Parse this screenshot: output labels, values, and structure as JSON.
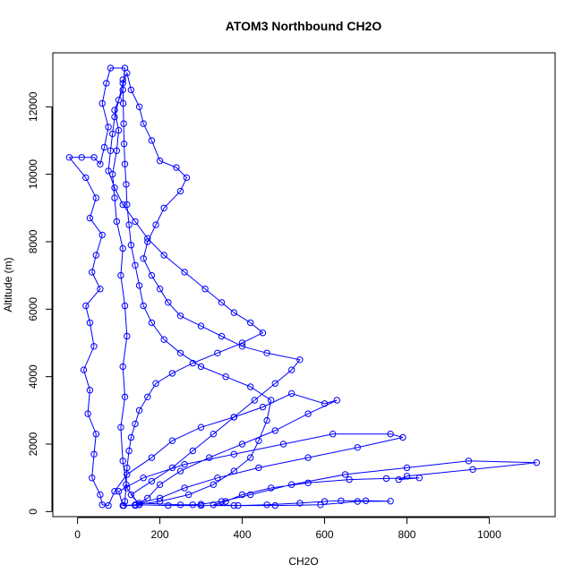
{
  "chart_data": {
    "type": "scatter",
    "title": "ATOM3 Northbound CH2O",
    "xlabel": "CH2O",
    "ylabel": "Altitude (m)",
    "xlim": [
      -60,
      1160
    ],
    "ylim": [
      -150,
      13600
    ],
    "x_ticks": [
      0,
      200,
      400,
      600,
      800,
      1000
    ],
    "y_ticks": [
      0,
      2000,
      4000,
      6000,
      8000,
      10000,
      12000
    ],
    "grid": false,
    "legend": "none",
    "series_color": "#0000ff",
    "marker": "open-circle",
    "connected": true,
    "series": [
      {
        "name": "",
        "points": [
          [
            150,
            200
          ],
          [
            120,
            700
          ],
          [
            110,
            1500
          ],
          [
            105,
            2500
          ],
          [
            115,
            3400
          ],
          [
            110,
            4300
          ],
          [
            120,
            5200
          ],
          [
            115,
            6100
          ],
          [
            105,
            7000
          ],
          [
            110,
            7800
          ],
          [
            95,
            8600
          ],
          [
            90,
            9300
          ],
          [
            85,
            10000
          ],
          [
            95,
            10700
          ],
          [
            100,
            11300
          ],
          [
            90,
            11900
          ],
          [
            110,
            12500
          ],
          [
            115,
            13150
          ],
          [
            80,
            13150
          ],
          [
            70,
            12700
          ],
          [
            60,
            12100
          ],
          [
            75,
            11400
          ],
          [
            65,
            10800
          ],
          [
            55,
            10300
          ],
          [
            40,
            10500
          ],
          [
            10,
            10500
          ],
          [
            -20,
            10500
          ],
          [
            20,
            9900
          ],
          [
            45,
            9300
          ],
          [
            30,
            8700
          ],
          [
            60,
            8200
          ],
          [
            45,
            7600
          ],
          [
            35,
            7100
          ],
          [
            55,
            6600
          ],
          [
            20,
            6100
          ],
          [
            30,
            5600
          ],
          [
            40,
            4900
          ],
          [
            15,
            4200
          ],
          [
            30,
            3600
          ],
          [
            25,
            2900
          ],
          [
            45,
            2300
          ],
          [
            40,
            1700
          ],
          [
            35,
            1000
          ],
          [
            55,
            500
          ],
          [
            60,
            200
          ],
          [
            75,
            180
          ],
          [
            90,
            600
          ],
          [
            120,
            1100
          ],
          [
            180,
            1600
          ],
          [
            230,
            2100
          ],
          [
            300,
            2500
          ],
          [
            380,
            2800
          ],
          [
            450,
            3100
          ],
          [
            520,
            3500
          ],
          [
            600,
            3200
          ],
          [
            630,
            3300
          ],
          [
            560,
            2900
          ],
          [
            480,
            2400
          ],
          [
            400,
            2000
          ],
          [
            320,
            1600
          ],
          [
            250,
            1200
          ],
          [
            200,
            800
          ],
          [
            170,
            400
          ],
          [
            140,
            180
          ],
          [
            110,
            180
          ],
          [
            100,
            600
          ],
          [
            160,
            1000
          ],
          [
            260,
            1400
          ],
          [
            380,
            1700
          ],
          [
            500,
            2000
          ],
          [
            620,
            2300
          ],
          [
            760,
            2300
          ],
          [
            790,
            2200
          ],
          [
            680,
            1900
          ],
          [
            560,
            1600
          ],
          [
            440,
            1300
          ],
          [
            340,
            1000
          ],
          [
            260,
            700
          ],
          [
            200,
            400
          ],
          [
            150,
            250
          ],
          [
            250,
            200
          ],
          [
            280,
            200
          ],
          [
            300,
            220
          ],
          [
            350,
            300
          ],
          [
            420,
            500
          ],
          [
            520,
            800
          ],
          [
            650,
            1100
          ],
          [
            800,
            1300
          ],
          [
            950,
            1500
          ],
          [
            1115,
            1450
          ],
          [
            960,
            1250
          ],
          [
            800,
            1050
          ],
          [
            780,
            950
          ],
          [
            830,
            1000
          ],
          [
            750,
            980
          ],
          [
            660,
            950
          ],
          [
            560,
            850
          ],
          [
            470,
            700
          ],
          [
            400,
            500
          ],
          [
            360,
            300
          ],
          [
            330,
            200
          ],
          [
            390,
            180
          ],
          [
            460,
            200
          ],
          [
            540,
            250
          ],
          [
            600,
            300
          ],
          [
            640,
            320
          ],
          [
            700,
            320
          ],
          [
            760,
            310
          ],
          [
            680,
            300
          ],
          [
            590,
            200
          ],
          [
            480,
            180
          ],
          [
            380,
            180
          ],
          [
            300,
            180
          ],
          [
            220,
            180
          ],
          [
            150,
            200
          ],
          [
            130,
            500
          ],
          [
            180,
            900
          ],
          [
            230,
            1300
          ],
          [
            280,
            1800
          ],
          [
            330,
            2300
          ],
          [
            380,
            2800
          ],
          [
            430,
            3300
          ],
          [
            480,
            3800
          ],
          [
            520,
            4200
          ],
          [
            540,
            4500
          ],
          [
            460,
            4700
          ],
          [
            400,
            4900
          ],
          [
            350,
            5200
          ],
          [
            300,
            5500
          ],
          [
            250,
            5800
          ],
          [
            220,
            6200
          ],
          [
            200,
            6600
          ],
          [
            180,
            7000
          ],
          [
            160,
            7500
          ],
          [
            170,
            8000
          ],
          [
            190,
            8500
          ],
          [
            210,
            9000
          ],
          [
            250,
            9500
          ],
          [
            265,
            9900
          ],
          [
            240,
            10200
          ],
          [
            200,
            10400
          ],
          [
            180,
            11000
          ],
          [
            160,
            11500
          ],
          [
            150,
            12000
          ],
          [
            130,
            12500
          ],
          [
            120,
            13000
          ],
          [
            110,
            12700
          ],
          [
            100,
            12200
          ],
          [
            90,
            11700
          ],
          [
            85,
            11200
          ],
          [
            80,
            10700
          ],
          [
            75,
            10100
          ],
          [
            90,
            9600
          ],
          [
            110,
            9100
          ],
          [
            140,
            8600
          ],
          [
            170,
            8100
          ],
          [
            210,
            7600
          ],
          [
            260,
            7100
          ],
          [
            310,
            6600
          ],
          [
            350,
            6200
          ],
          [
            380,
            5900
          ],
          [
            420,
            5600
          ],
          [
            450,
            5300
          ],
          [
            400,
            5000
          ],
          [
            340,
            4700
          ],
          [
            280,
            4400
          ],
          [
            230,
            4100
          ],
          [
            190,
            3800
          ],
          [
            170,
            3400
          ],
          [
            150,
            3000
          ],
          [
            140,
            2600
          ],
          [
            130,
            2200
          ],
          [
            125,
            1800
          ],
          [
            120,
            1300
          ],
          [
            118,
            800
          ],
          [
            115,
            300
          ],
          [
            112,
            180
          ],
          [
            140,
            200
          ],
          [
            200,
            300
          ],
          [
            270,
            500
          ],
          [
            330,
            800
          ],
          [
            380,
            1200
          ],
          [
            420,
            1600
          ],
          [
            440,
            2100
          ],
          [
            460,
            2700
          ],
          [
            470,
            3300
          ],
          [
            420,
            3700
          ],
          [
            360,
            4000
          ],
          [
            300,
            4300
          ],
          [
            250,
            4700
          ],
          [
            210,
            5100
          ],
          [
            180,
            5600
          ],
          [
            160,
            6100
          ],
          [
            150,
            6700
          ],
          [
            140,
            7300
          ],
          [
            130,
            7900
          ],
          [
            125,
            8500
          ],
          [
            120,
            9100
          ],
          [
            118,
            9700
          ],
          [
            115,
            10300
          ],
          [
            113,
            10900
          ],
          [
            112,
            11500
          ],
          [
            111,
            12100
          ],
          [
            110,
            12800
          ]
        ]
      }
    ]
  }
}
